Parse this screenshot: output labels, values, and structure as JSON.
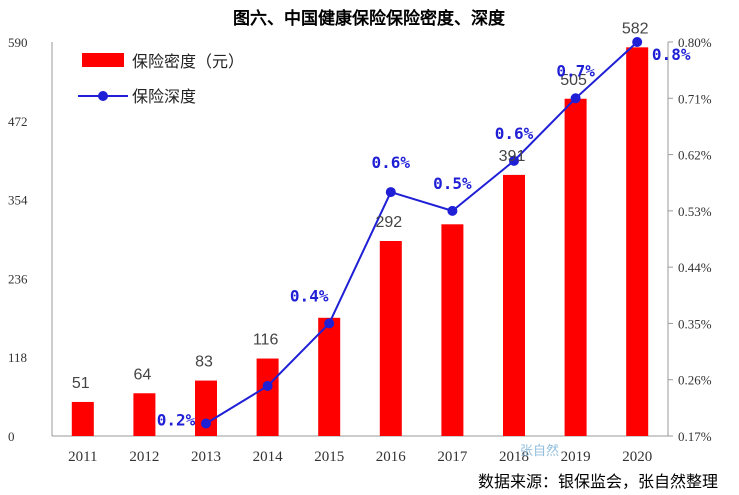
{
  "chart_data": {
    "type": "bar",
    "title": "图六、中国健康保险保险密度、深度",
    "categories": [
      "2011",
      "2012",
      "2013",
      "2014",
      "2015",
      "2016",
      "2017",
      "2018",
      "2019",
      "2020"
    ],
    "series": [
      {
        "name": "保险密度（元）",
        "kind": "bar",
        "axis": "left",
        "color": "#ff0000",
        "values": [
          51,
          64,
          83,
          116,
          177,
          292,
          317,
          391,
          505,
          582
        ],
        "labels": [
          "51",
          "64",
          "83",
          "116",
          "",
          "292",
          "",
          "391",
          "505",
          "582"
        ]
      },
      {
        "name": "保险深度",
        "kind": "line",
        "axis": "right",
        "color": "#1f1fd6",
        "values": [
          null,
          null,
          0.19,
          0.25,
          0.35,
          0.56,
          0.53,
          0.61,
          0.71,
          0.8
        ],
        "labels": [
          "",
          "",
          "0.2%",
          "",
          "0.4%",
          "0.6%",
          "0.5%",
          "0.6%",
          "0.7%",
          "0.8%"
        ]
      }
    ],
    "left_axis": {
      "ylim": [
        0,
        590
      ],
      "ticks": [
        "0",
        "118",
        "236",
        "354",
        "472",
        "590"
      ]
    },
    "right_axis": {
      "ylim": [
        0.17,
        0.8
      ],
      "ticks": [
        "0.17%",
        "0.26%",
        "0.35%",
        "0.44%",
        "0.53%",
        "0.62%",
        "0.71%",
        "0.80%"
      ]
    },
    "legend": {
      "position": "top-left"
    },
    "grid": false
  },
  "source_note": "数据来源：银保监会，张自然整理",
  "watermark": "张自然"
}
